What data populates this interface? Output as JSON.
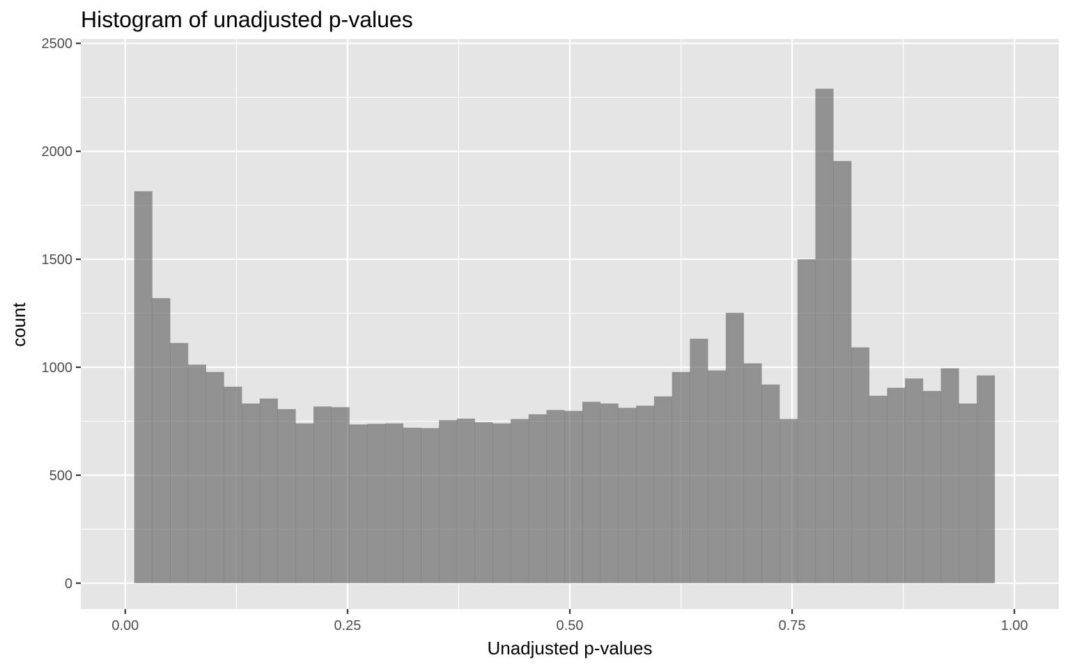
{
  "chart_data": {
    "type": "bar",
    "title": "Histogram of unadjusted p-values",
    "xlabel": "Unadjusted p-values",
    "ylabel": "count",
    "xlim": [
      -0.05,
      1.05
    ],
    "ylim": [
      -120,
      2520
    ],
    "x_ticks": [
      0.0,
      0.25,
      0.5,
      0.75,
      1.0
    ],
    "x_tick_labels": [
      "0.00",
      "0.25",
      "0.50",
      "0.75",
      "1.00"
    ],
    "y_ticks": [
      0,
      500,
      1000,
      1500,
      2000,
      2500
    ],
    "y_tick_labels": [
      "0",
      "500",
      "1000",
      "1500",
      "2000",
      "2500"
    ],
    "grid": true,
    "bin_start": 0.0101,
    "bin_width": 0.02016,
    "values": [
      1815,
      1320,
      1112,
      1012,
      978,
      910,
      832,
      855,
      806,
      740,
      818,
      815,
      735,
      738,
      740,
      720,
      718,
      755,
      762,
      745,
      740,
      760,
      782,
      802,
      798,
      840,
      832,
      812,
      822,
      865,
      978,
      1132,
      985,
      1252,
      1018,
      920,
      760,
      1500,
      2290,
      1955,
      1092,
      868,
      905,
      948,
      890,
      995,
      832,
      962
    ],
    "colors": {
      "bar": "#595959",
      "panel": "#e5e5e5",
      "grid": "#ffffff"
    }
  }
}
